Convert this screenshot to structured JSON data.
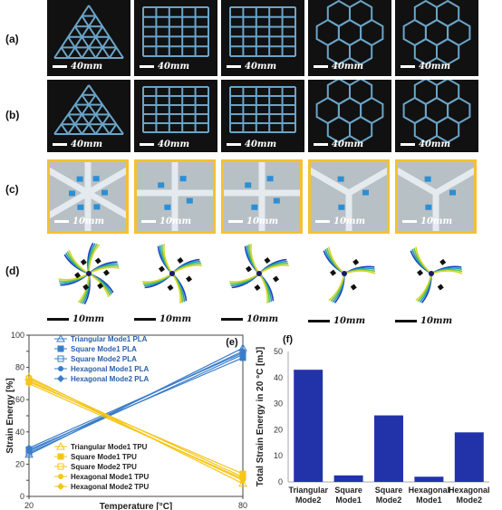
{
  "panel_labels": {
    "a": "(a)",
    "b": "(b)",
    "c": "(c)",
    "d": "(d)",
    "e": "(e)",
    "f": "(f)"
  },
  "scale_bars": {
    "ab": "40mm",
    "c": "10mm",
    "d": "10mm"
  },
  "structures": [
    "triangular",
    "square",
    "square",
    "hexagonal",
    "hexagonal"
  ],
  "colors": {
    "tile_bg": "#111111",
    "lattice": "#6aa4c8",
    "photo_border": "#f2c230",
    "pla": "#3a7dc9",
    "tpu": "#f5c518",
    "bar": "#2233aa"
  },
  "chart_data": [
    {
      "type": "line",
      "panel": "(e)",
      "xlabel": "Temperature [°C]",
      "ylabel": "Strain Energy [%]",
      "xlim": [
        20,
        80
      ],
      "ylim": [
        0,
        100
      ],
      "xticks": [
        20,
        80
      ],
      "yticks": [
        0,
        10,
        20,
        30,
        40,
        50,
        60,
        70,
        80,
        90,
        100
      ],
      "legend_pla_position": "top-left",
      "legend_tpu_position": "bottom-left",
      "series": [
        {
          "name": "Triangular Mode1 PLA",
          "group": "PLA",
          "marker": "triangle",
          "x": [
            20,
            80
          ],
          "y": [
            26,
            92
          ]
        },
        {
          "name": "Square Mode1 PLA",
          "group": "PLA",
          "marker": "square",
          "x": [
            20,
            80
          ],
          "y": [
            29,
            86
          ]
        },
        {
          "name": "Square Mode2 PLA",
          "group": "PLA",
          "marker": "square-open",
          "x": [
            20,
            80
          ],
          "y": [
            27,
            88
          ]
        },
        {
          "name": "Hexagonal Mode1 PLA",
          "group": "PLA",
          "marker": "circle",
          "x": [
            20,
            80
          ],
          "y": [
            28,
            90
          ]
        },
        {
          "name": "Hexagonal Mode2 PLA",
          "group": "PLA",
          "marker": "diamond",
          "x": [
            20,
            80
          ],
          "y": [
            30,
            89
          ]
        },
        {
          "name": "Triangular Mode1 TPU",
          "group": "TPU",
          "marker": "triangle",
          "x": [
            20,
            80
          ],
          "y": [
            74,
            8
          ]
        },
        {
          "name": "Square Mode1 TPU",
          "group": "TPU",
          "marker": "square",
          "x": [
            20,
            80
          ],
          "y": [
            71,
            14
          ]
        },
        {
          "name": "Square Mode2 TPU",
          "group": "TPU",
          "marker": "square-open",
          "x": [
            20,
            80
          ],
          "y": [
            73,
            12
          ]
        },
        {
          "name": "Hexagonal Mode1 TPU",
          "group": "TPU",
          "marker": "circle",
          "x": [
            20,
            80
          ],
          "y": [
            72,
            10
          ]
        },
        {
          "name": "Hexagonal Mode2 TPU",
          "group": "TPU",
          "marker": "diamond",
          "x": [
            20,
            80
          ],
          "y": [
            70,
            11
          ]
        }
      ]
    },
    {
      "type": "bar",
      "panel": "(f)",
      "ylabel": "Total Strain Energy in 20 °C [mJ]",
      "ylim": [
        0,
        50
      ],
      "yticks": [
        0,
        10,
        20,
        30,
        40,
        50
      ],
      "categories": [
        "Triangular Mode2",
        "Square Mode1",
        "Square Mode2",
        "Hexagonal Mode1",
        "Hexagonal Mode2"
      ],
      "category_lines": [
        [
          "Triangular",
          "Mode2"
        ],
        [
          "Square",
          "Mode1"
        ],
        [
          "Square",
          "Mode2"
        ],
        [
          "Hexagonal",
          "Mode1"
        ],
        [
          "Hexagonal",
          "Mode2"
        ]
      ],
      "values": [
        43,
        2.5,
        25.5,
        2,
        19
      ]
    }
  ]
}
